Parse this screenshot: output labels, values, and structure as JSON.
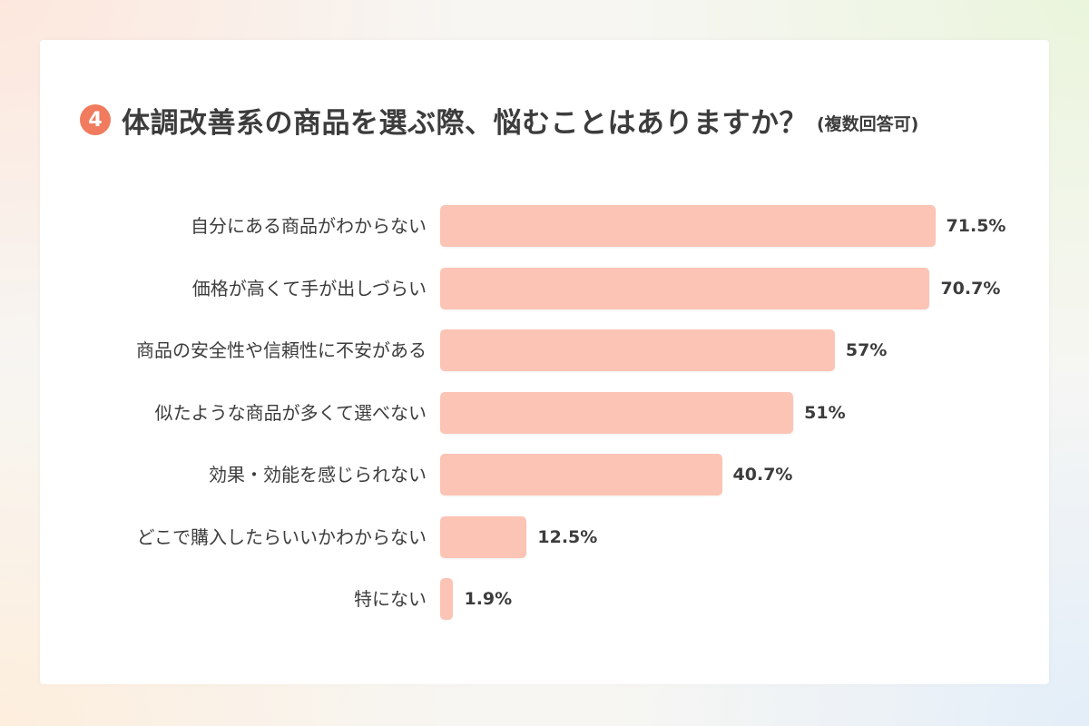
{
  "question": {
    "number": "4",
    "title": "体調改善系の商品を選ぶ際、悩むことはありますか？",
    "note": "(複数回答可)"
  },
  "colors": {
    "bar": "#fcc4b5",
    "badge": "#f07b5e",
    "text": "#3c3c3c"
  },
  "chart_data": {
    "type": "bar",
    "orientation": "horizontal",
    "title": "体調改善系の商品を選ぶ際、悩むことはありますか？",
    "categories": [
      "自分にある商品がわからない",
      "価格が高くて手が出しづらい",
      "商品の安全性や信頼性に不安がある",
      "似たような商品が多くて選べない",
      "効果・効能を感じられない",
      "どこで購入したらいいかわからない",
      "特にない"
    ],
    "values": [
      71.5,
      70.7,
      57,
      51,
      40.7,
      12.5,
      1.9
    ],
    "value_labels": [
      "71.5%",
      "70.7%",
      "57%",
      "51%",
      "40.7%",
      "12.5%",
      "1.9%"
    ],
    "unit": "%",
    "xlim": [
      0,
      100
    ],
    "grid": false,
    "legend": "none"
  }
}
